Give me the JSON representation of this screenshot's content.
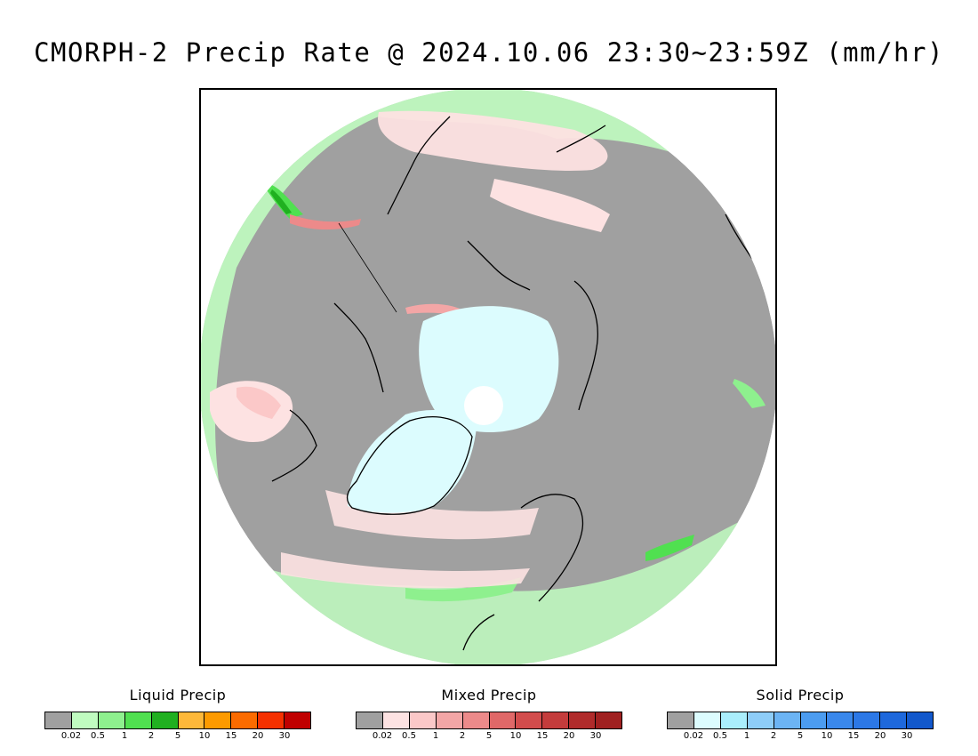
{
  "title": "CMORPH-2 Precip Rate @ 2024.10.06 23:30~23:59Z (mm/hr)",
  "map": {
    "projection": "north-polar-stereographic",
    "features": [
      "coastline-icon",
      "greenland-ice",
      "north-pole-gap"
    ]
  },
  "legends": [
    {
      "id": "liquid",
      "title": "Liquid Precip",
      "colors": [
        "#a0a0a0",
        "#c0fcc0",
        "#8ef08e",
        "#50e050",
        "#20b020",
        "#fdb83a",
        "#fd9a00",
        "#fb6b00",
        "#f53000",
        "#c00000"
      ],
      "ticks": [
        "0.02",
        "0.5",
        "1",
        "2",
        "5",
        "10",
        "15",
        "20",
        "30"
      ]
    },
    {
      "id": "mixed",
      "title": "Mixed Precip",
      "colors": [
        "#a0a0a0",
        "#fde2e2",
        "#fbc8c8",
        "#f3a6a6",
        "#ec8a8a",
        "#e06868",
        "#d24c4c",
        "#c43c3c",
        "#b02b2b",
        "#a02020"
      ],
      "ticks": [
        "0.02",
        "0.5",
        "1",
        "2",
        "5",
        "10",
        "15",
        "20",
        "30"
      ]
    },
    {
      "id": "solid",
      "title": "Solid Precip",
      "colors": [
        "#a0a0a0",
        "#dcfcfe",
        "#aaeefc",
        "#8ecdf8",
        "#6cb4f4",
        "#4c9cf0",
        "#3a88ec",
        "#2c78e6",
        "#1e68dc",
        "#1258cc"
      ],
      "ticks": [
        "0.02",
        "0.5",
        "1",
        "2",
        "5",
        "10",
        "15",
        "20",
        "30"
      ]
    }
  ]
}
